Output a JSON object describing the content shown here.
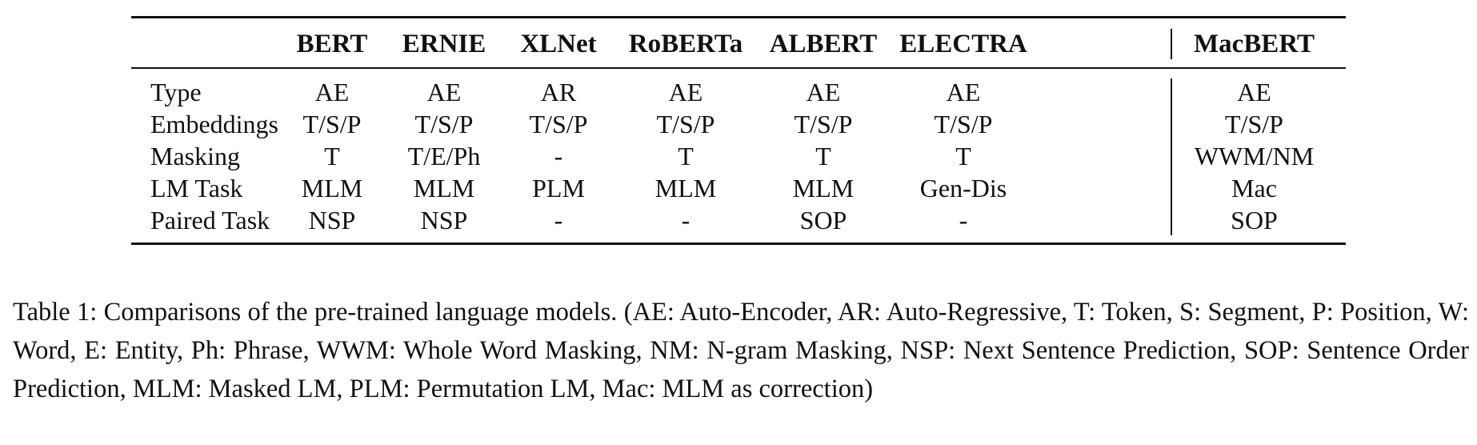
{
  "table": {
    "columns": [
      "BERT",
      "ERNIE",
      "XLNet",
      "RoBERTa",
      "ALBERT",
      "ELECTRA",
      "MacBERT"
    ],
    "rows": [
      {
        "label": "Type",
        "values": [
          "AE",
          "AE",
          "AR",
          "AE",
          "AE",
          "AE",
          "AE"
        ]
      },
      {
        "label": "Embeddings",
        "values": [
          "T/S/P",
          "T/S/P",
          "T/S/P",
          "T/S/P",
          "T/S/P",
          "T/S/P",
          "T/S/P"
        ]
      },
      {
        "label": "Masking",
        "values": [
          "T",
          "T/E/Ph",
          "-",
          "T",
          "T",
          "T",
          "WWM/NM"
        ]
      },
      {
        "label": "LM Task",
        "values": [
          "MLM",
          "MLM",
          "PLM",
          "MLM",
          "MLM",
          "Gen-Dis",
          "Mac"
        ]
      },
      {
        "label": "Paired Task",
        "values": [
          "NSP",
          "NSP",
          "-",
          "-",
          "SOP",
          "-",
          "SOP"
        ]
      }
    ]
  },
  "caption": "Table 1:  Comparisons of the pre-trained language models. (AE: Auto-Encoder, AR: Auto-Regressive, T: Token, S: Segment, P: Position, W: Word, E: Entity, Ph: Phrase, WWM: Whole Word Masking, NM: N-gram Masking, NSP: Next Sentence Prediction, SOP: Sentence Order Prediction, MLM: Masked LM, PLM: Permutation LM, Mac: MLM as correction)"
}
